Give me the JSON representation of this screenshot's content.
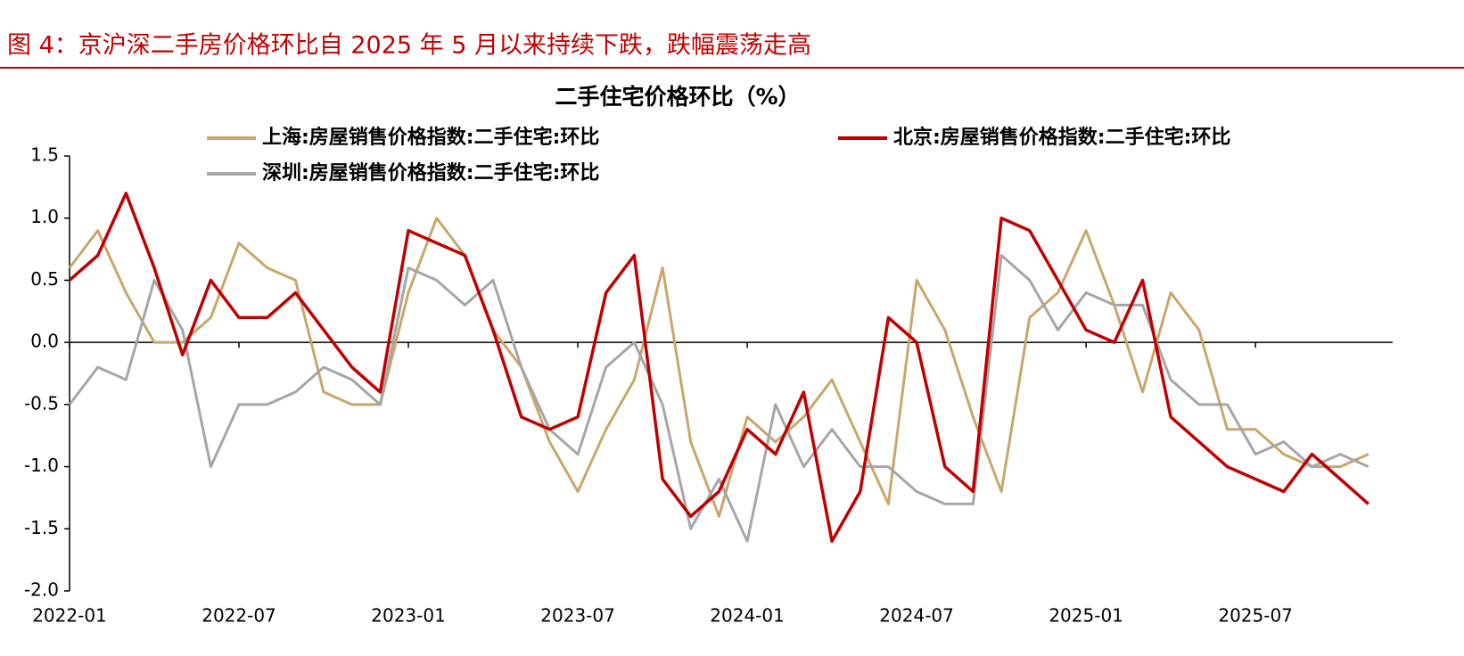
{
  "heading": "图 4：京沪深二手房价格环比自 2025 年 5 月以来持续下跌，跌幅震荡走高",
  "chart_data": {
    "type": "line",
    "title": "二手住宅价格环比（%）",
    "categories": [
      "2022-01",
      null,
      null,
      null,
      null,
      null,
      "2022-07",
      null,
      null,
      null,
      null,
      null,
      "2023-01",
      null,
      null,
      null,
      null,
      null,
      "2023-07",
      null,
      null,
      null,
      null,
      null,
      "2024-01",
      null,
      null,
      null,
      null,
      null,
      "2024-07",
      null,
      null,
      null,
      null,
      null,
      "2025-01",
      null,
      null,
      null,
      null,
      null,
      "2025-07",
      null,
      null,
      null,
      null
    ],
    "series": [
      {
        "name": "上海:房屋销售价格指数:二手住宅:环比",
        "color": "#c9a66b",
        "values": [
          0.6,
          0.9,
          0.4,
          0.0,
          0.0,
          0.2,
          0.8,
          0.6,
          0.5,
          -0.4,
          -0.5,
          -0.5,
          0.4,
          1.0,
          0.7,
          0.1,
          -0.2,
          -0.8,
          -1.2,
          -0.7,
          -0.3,
          0.6,
          -0.8,
          -1.4,
          -0.6,
          -0.8,
          -0.6,
          -0.3,
          -0.8,
          -1.3,
          0.5,
          0.1,
          -0.6,
          -1.2,
          0.2,
          0.4,
          0.9,
          0.3,
          -0.4,
          0.4,
          0.1,
          -0.7,
          -0.7,
          -0.9,
          -1.0,
          -1.0,
          -0.9
        ]
      },
      {
        "name": "北京:房屋销售价格指数:二手住宅:环比",
        "color": "#c00000",
        "values": [
          0.5,
          0.7,
          1.2,
          0.6,
          -0.1,
          0.5,
          0.2,
          0.2,
          0.4,
          0.1,
          -0.2,
          -0.4,
          0.9,
          0.8,
          0.7,
          0.1,
          -0.6,
          -0.7,
          -0.6,
          0.4,
          0.7,
          -1.1,
          -1.4,
          -1.2,
          -0.7,
          -0.9,
          -0.4,
          -1.6,
          -1.2,
          0.2,
          0.0,
          -1.0,
          -1.2,
          1.0,
          0.9,
          0.5,
          0.1,
          0.0,
          0.5,
          -0.6,
          -0.8,
          -1.0,
          -1.1,
          -1.2,
          -0.9,
          -1.1,
          -1.3
        ]
      },
      {
        "name": "深圳:房屋销售价格指数:二手住宅:环比",
        "color": "#a6a6a6",
        "values": [
          -0.5,
          -0.2,
          -0.3,
          0.5,
          0.1,
          -1.0,
          -0.5,
          -0.5,
          -0.4,
          -0.2,
          -0.3,
          -0.5,
          0.6,
          0.5,
          0.3,
          0.5,
          -0.2,
          -0.7,
          -0.9,
          -0.2,
          0.0,
          -0.5,
          -1.5,
          -1.1,
          -1.6,
          -0.5,
          -1.0,
          -0.7,
          -1.0,
          -1.0,
          -1.2,
          -1.3,
          -1.3,
          0.7,
          0.5,
          0.1,
          0.4,
          0.3,
          0.3,
          -0.3,
          -0.5,
          -0.5,
          -0.9,
          -0.8,
          -1.0,
          -0.9,
          -1.0
        ]
      }
    ],
    "ylim": [
      -2,
      1.5
    ],
    "yticks": [
      {
        "value": -2,
        "label": "-2.0"
      },
      -1.5,
      {
        "value": -1,
        "label": "-1.0"
      },
      -0.5,
      {
        "value": 0,
        "label": "0.0"
      },
      0.5,
      {
        "value": 1,
        "label": "1.0"
      },
      1.5
    ]
  }
}
